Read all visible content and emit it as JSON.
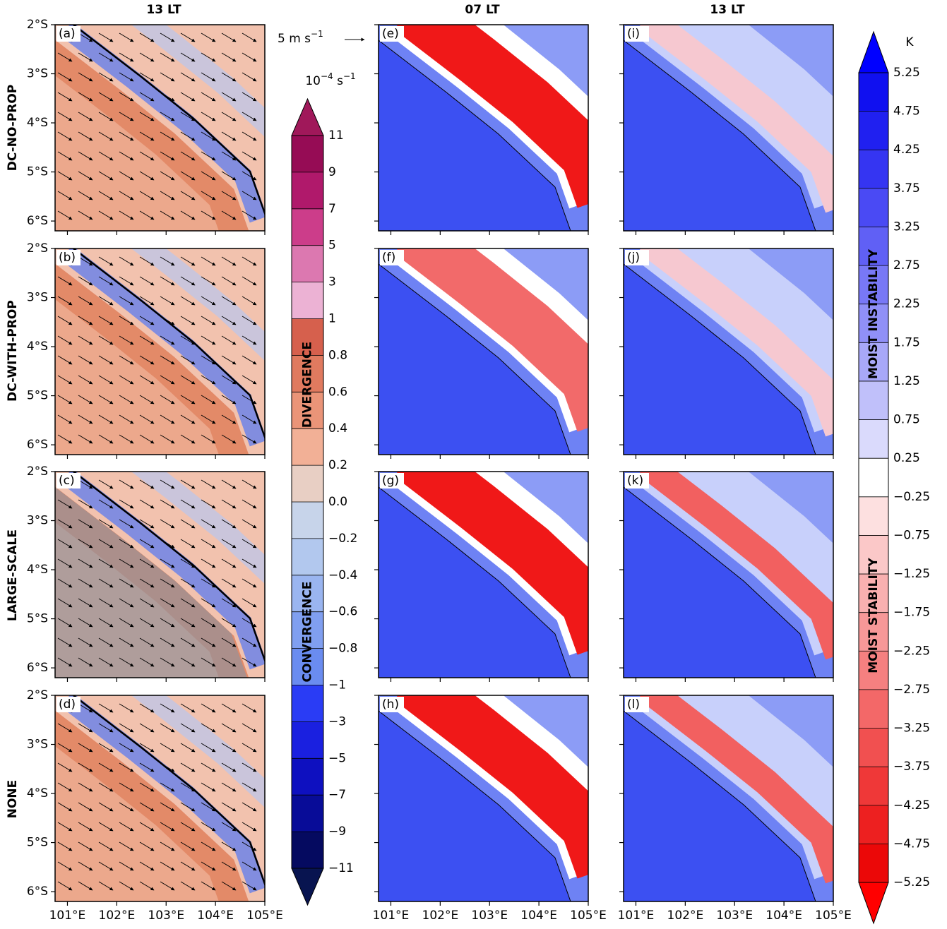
{
  "column_titles": [
    "13 LT",
    "07 LT",
    "13 LT"
  ],
  "row_labels": [
    "DC-NO-PROP",
    "DC-WITH-PROP",
    "LARGE-SCALE",
    "NONE"
  ],
  "panels": [
    {
      "label": "(a)"
    },
    {
      "label": "(b)"
    },
    {
      "label": "(c)"
    },
    {
      "label": "(d)"
    },
    {
      "label": "(e)"
    },
    {
      "label": "(f)"
    },
    {
      "label": "(g)"
    },
    {
      "label": "(h)"
    },
    {
      "label": "(i)"
    },
    {
      "label": "(j)"
    },
    {
      "label": "(k)"
    },
    {
      "label": "(l)"
    }
  ],
  "xlim": [
    100.75,
    105
  ],
  "ylim": [
    -6.2,
    -2
  ],
  "lat_ticks": [
    {
      "value": -2,
      "label": "2°S"
    },
    {
      "value": -3,
      "label": "3°S"
    },
    {
      "value": -4,
      "label": "4°S"
    },
    {
      "value": -5,
      "label": "5°S"
    },
    {
      "value": -6,
      "label": "6°S"
    }
  ],
  "lon_ticks": [
    {
      "value": 101,
      "label": "101°E"
    },
    {
      "value": 102,
      "label": "102°E"
    },
    {
      "value": 103,
      "label": "103°E"
    },
    {
      "value": 104,
      "label": "104°E"
    },
    {
      "value": 105,
      "label": "105°E"
    }
  ],
  "vector_key": {
    "text": "5 m s",
    "exponent": "−1"
  },
  "divergence_colorbar": {
    "unit": [
      "10",
      "−4",
      " s",
      "−1"
    ],
    "labels": [
      "DIVERGENCE",
      "CONVERGENCE"
    ],
    "ticks": [
      {
        "value": 11,
        "label": "11"
      },
      {
        "value": 9,
        "label": "9"
      },
      {
        "value": 7,
        "label": "7"
      },
      {
        "value": 5,
        "label": "5"
      },
      {
        "value": 3,
        "label": "3"
      },
      {
        "value": 1,
        "label": "1"
      },
      {
        "value": 0.8,
        "label": "0.8"
      },
      {
        "value": 0.6,
        "label": "0.6"
      },
      {
        "value": 0.4,
        "label": "0.4"
      },
      {
        "value": 0.2,
        "label": "0.2"
      },
      {
        "value": 0,
        "label": "0.0"
      },
      {
        "value": -0.2,
        "label": "−0.2"
      },
      {
        "value": -0.4,
        "label": "−0.4"
      },
      {
        "value": -0.6,
        "label": "−0.6"
      },
      {
        "value": -0.8,
        "label": "−0.8"
      },
      {
        "value": -1,
        "label": "−1"
      },
      {
        "value": -3,
        "label": "−3"
      },
      {
        "value": -5,
        "label": "−5"
      },
      {
        "value": -7,
        "label": "−7"
      },
      {
        "value": -9,
        "label": "−9"
      },
      {
        "value": -11,
        "label": "−11"
      }
    ],
    "colors": [
      "#960c55",
      "#b0196b",
      "#cc3d8a",
      "#dc78b0",
      "#ecb2d4",
      "#d6604d",
      "#e07a5f",
      "#ea9478",
      "#f2b096",
      "#e8cfc4",
      "#c7d4ea",
      "#b2c8ee",
      "#9ab5f0",
      "#809ff0",
      "#6a8cf0",
      "#2a3cf5",
      "#1a20e0",
      "#0e10c0",
      "#080c98",
      "#050a60"
    ],
    "over_color": "#a0185a",
    "under_color": "#081450"
  },
  "instability_colorbar": {
    "unit": "K",
    "labels": [
      "MOIST INSTABILITY",
      "MOIST STABILITY"
    ],
    "ticks": [
      {
        "value": 5.25,
        "label": "5.25"
      },
      {
        "value": 4.75,
        "label": "4.75"
      },
      {
        "value": 4.25,
        "label": "4.25"
      },
      {
        "value": 3.75,
        "label": "3.75"
      },
      {
        "value": 3.25,
        "label": "3.25"
      },
      {
        "value": 2.75,
        "label": "2.75"
      },
      {
        "value": 2.25,
        "label": "2.25"
      },
      {
        "value": 1.75,
        "label": "1.75"
      },
      {
        "value": 1.25,
        "label": "1.25"
      },
      {
        "value": 0.75,
        "label": "0.75"
      },
      {
        "value": 0.25,
        "label": "0.25"
      },
      {
        "value": -0.25,
        "label": "−0.25"
      },
      {
        "value": -0.75,
        "label": "−0.75"
      },
      {
        "value": -1.25,
        "label": "−1.25"
      },
      {
        "value": -1.75,
        "label": "−1.75"
      },
      {
        "value": -2.25,
        "label": "−2.25"
      },
      {
        "value": -2.75,
        "label": "−2.75"
      },
      {
        "value": -3.25,
        "label": "−3.25"
      },
      {
        "value": -3.75,
        "label": "−3.75"
      },
      {
        "value": -4.25,
        "label": "−4.25"
      },
      {
        "value": -4.75,
        "label": "−4.75"
      },
      {
        "value": -5.25,
        "label": "−5.25"
      }
    ],
    "colors": [
      "#1010f0",
      "#2020f0",
      "#3535f2",
      "#4a4af4",
      "#6060f5",
      "#7878f6",
      "#9090f7",
      "#a8a8f8",
      "#c0c0fa",
      "#dadafc",
      "#ffffff",
      "#fde0e0",
      "#fbc8c8",
      "#f9b0b0",
      "#f79898",
      "#f58080",
      "#f36868",
      "#f15050",
      "#ef3838",
      "#ed2020",
      "#eb0808"
    ],
    "over_color": "#0000ff",
    "under_color": "#ff0000"
  }
}
